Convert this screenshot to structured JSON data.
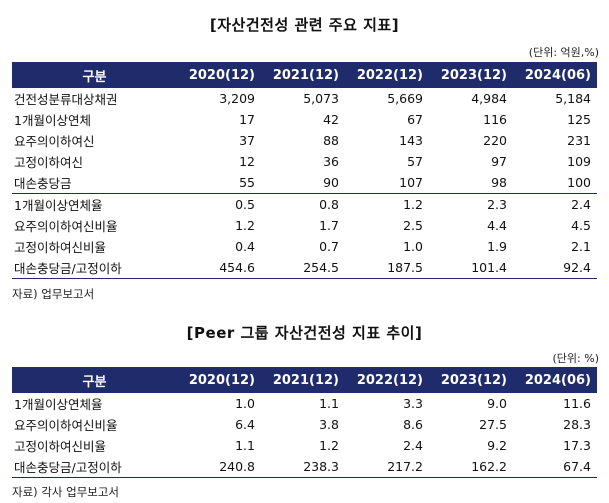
{
  "table1": {
    "title": "[자산건전성 관련 주요 지표]",
    "unit": "(단위: 억원,%)",
    "headers": [
      "구분",
      "2020(12)",
      "2021(12)",
      "2022(12)",
      "2023(12)",
      "2024(06)"
    ],
    "rows": [
      [
        "건전성분류대상채권",
        "3,209",
        "5,073",
        "5,669",
        "4,984",
        "5,184"
      ],
      [
        "1개월이상연체",
        "17",
        "42",
        "67",
        "116",
        "125"
      ],
      [
        "요주의이하여신",
        "37",
        "88",
        "143",
        "220",
        "231"
      ],
      [
        "고정이하여신",
        "12",
        "36",
        "57",
        "97",
        "109"
      ],
      [
        "대손충당금",
        "55",
        "90",
        "107",
        "98",
        "100"
      ],
      [
        "1개월이상연체율",
        "0.5",
        "0.8",
        "1.2",
        "2.3",
        "2.4"
      ],
      [
        "요주의이하여신비율",
        "1.2",
        "1.7",
        "2.5",
        "4.4",
        "4.5"
      ],
      [
        "고정이하여신비율",
        "0.4",
        "0.7",
        "1.0",
        "1.9",
        "2.1"
      ],
      [
        "대손충당금/고정이하",
        "454.6",
        "254.5",
        "187.5",
        "101.4",
        "92.4"
      ]
    ],
    "source": "자료) 업무보고서"
  },
  "table2": {
    "title": "[Peer 그룹 자산건전성 지표 추이]",
    "unit": "(단위: %)",
    "headers": [
      "구분",
      "2020(12)",
      "2021(12)",
      "2022(12)",
      "2023(12)",
      "2024(06)"
    ],
    "rows": [
      [
        "1개월이상연체율",
        "1.0",
        "1.1",
        "3.3",
        "9.0",
        "11.6"
      ],
      [
        "요주의이하여신비율",
        "6.4",
        "3.8",
        "8.6",
        "27.5",
        "28.3"
      ],
      [
        "고정이하여신비율",
        "1.1",
        "1.2",
        "2.4",
        "9.2",
        "17.3"
      ],
      [
        "대손충당금/고정이하",
        "240.8",
        "238.3",
        "217.2",
        "162.2",
        "67.4"
      ]
    ],
    "source": "자료) 각사 업무보고서"
  },
  "colors": {
    "header_bg": "#1f2b6b",
    "header_text": "#ffffff"
  }
}
